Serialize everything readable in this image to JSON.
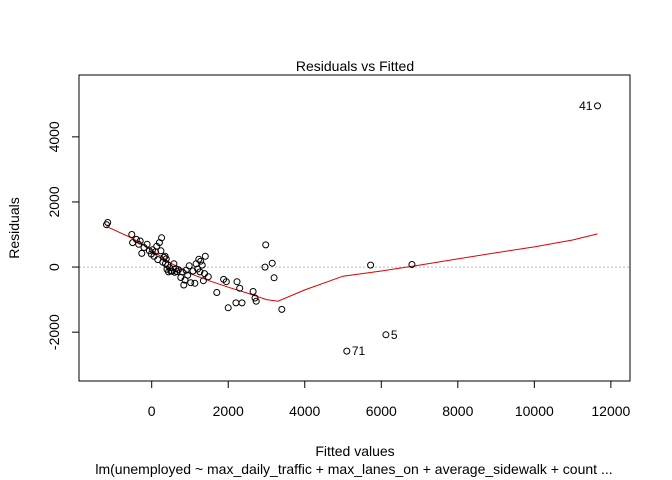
{
  "chart_data": {
    "type": "scatter",
    "title": "Residuals vs Fitted",
    "xlabel": "Fitted values",
    "ylabel": "Residuals",
    "subtitle": "lm(unemployed ~ max_daily_traffic + max_lanes_on + average_sidewalk + count ...",
    "xlim": [
      -1900,
      12500
    ],
    "ylim": [
      -3500,
      5900
    ],
    "x_ticks": [
      0,
      2000,
      4000,
      6000,
      8000,
      10000,
      12000
    ],
    "x_tick_labels": [
      "0",
      "2000",
      "4000",
      "6000",
      "8000",
      "10000",
      "12000"
    ],
    "y_ticks": [
      -2000,
      0,
      2000,
      4000
    ],
    "y_tick_labels": [
      "-2000",
      "0",
      "2000",
      "4000"
    ],
    "reference_line": {
      "y": 0,
      "style": "dotted",
      "color": "#b3b3b3"
    },
    "points": [
      [
        -1180,
        1300
      ],
      [
        -1150,
        1370
      ],
      [
        -520,
        1000
      ],
      [
        -500,
        750
      ],
      [
        -400,
        850
      ],
      [
        -340,
        700
      ],
      [
        -300,
        800
      ],
      [
        -260,
        420
      ],
      [
        -200,
        600
      ],
      [
        -120,
        700
      ],
      [
        -60,
        500
      ],
      [
        -10,
        400
      ],
      [
        20,
        530
      ],
      [
        60,
        330
      ],
      [
        100,
        470
      ],
      [
        130,
        640
      ],
      [
        160,
        230
      ],
      [
        200,
        750
      ],
      [
        240,
        500
      ],
      [
        260,
        900
      ],
      [
        290,
        150
      ],
      [
        320,
        300
      ],
      [
        350,
        330
      ],
      [
        360,
        110
      ],
      [
        380,
        250
      ],
      [
        400,
        -70
      ],
      [
        420,
        60
      ],
      [
        440,
        -150
      ],
      [
        470,
        -20
      ],
      [
        500,
        -120
      ],
      [
        530,
        -130
      ],
      [
        580,
        100
      ],
      [
        600,
        -160
      ],
      [
        630,
        -50
      ],
      [
        660,
        -140
      ],
      [
        700,
        -80
      ],
      [
        760,
        -320
      ],
      [
        800,
        -150
      ],
      [
        840,
        -550
      ],
      [
        870,
        -400
      ],
      [
        900,
        -100
      ],
      [
        940,
        -250
      ],
      [
        980,
        40
      ],
      [
        1020,
        -480
      ],
      [
        1080,
        -120
      ],
      [
        1130,
        -500
      ],
      [
        1160,
        100
      ],
      [
        1200,
        -60
      ],
      [
        1230,
        240
      ],
      [
        1260,
        -150
      ],
      [
        1280,
        180
      ],
      [
        1320,
        60
      ],
      [
        1350,
        -420
      ],
      [
        1380,
        -200
      ],
      [
        1400,
        330
      ],
      [
        1480,
        -300
      ],
      [
        1700,
        -780
      ],
      [
        1880,
        -380
      ],
      [
        1950,
        -450
      ],
      [
        2000,
        -1250
      ],
      [
        2200,
        -1100
      ],
      [
        2230,
        -450
      ],
      [
        2300,
        -650
      ],
      [
        2360,
        -1100
      ],
      [
        2650,
        -750
      ],
      [
        2700,
        -950
      ],
      [
        2730,
        -1050
      ],
      [
        2960,
        0
      ],
      [
        2980,
        680
      ],
      [
        3150,
        120
      ],
      [
        3200,
        -330
      ],
      [
        3400,
        -1300
      ],
      [
        5720,
        60
      ],
      [
        6800,
        80
      ]
    ],
    "labeled_points": [
      {
        "x": 11650,
        "y": 4950,
        "label": "41",
        "side": "left"
      },
      {
        "x": 6120,
        "y": -2080,
        "label": "5",
        "side": "right"
      },
      {
        "x": 5100,
        "y": -2580,
        "label": "71",
        "side": "right"
      }
    ],
    "smoother": {
      "color": "#e00000",
      "x": [
        -1180,
        -500,
        0,
        500,
        1000,
        1500,
        2000,
        2500,
        3000,
        3300,
        4000,
        5000,
        6000,
        7000,
        8000,
        9000,
        10000,
        11000,
        11650
      ],
      "y": [
        1250,
        880,
        520,
        120,
        -200,
        -420,
        -620,
        -800,
        -1000,
        -1050,
        -700,
        -280,
        -120,
        60,
        250,
        440,
        620,
        830,
        1020
      ]
    },
    "point_color": "#000000"
  }
}
